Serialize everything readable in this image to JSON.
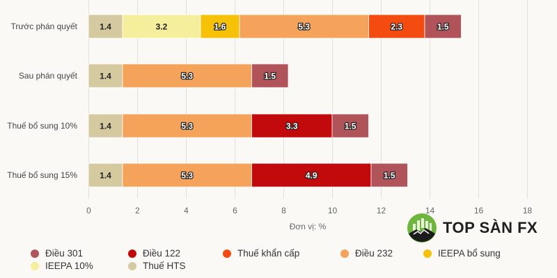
{
  "chart_data": {
    "type": "bar",
    "orientation": "horizontal",
    "stacked": true,
    "title": "",
    "xlabel": "Đơn vị: %",
    "ylabel": "",
    "xlim": [
      0,
      18
    ],
    "x_ticks": [
      0,
      2,
      4,
      6,
      8,
      10,
      12,
      14,
      16,
      18
    ],
    "grid": true,
    "legend_position": "bottom",
    "categories": [
      "Trước phán quyết",
      "Sau phán quyết",
      "Thuế bổ sung 10%",
      "Thuế bổ sung 15%"
    ],
    "stack_order": [
      "Thuế HTS",
      "IEEPA 10%",
      "IEEPA bổ sung",
      "Điều 232",
      "Điều 122",
      "Thuế khẩn cấp",
      "Điều 301"
    ],
    "series": [
      {
        "name": "Thuế HTS",
        "color": "#d5c9a0",
        "values": [
          1.4,
          1.4,
          1.4,
          1.4
        ]
      },
      {
        "name": "IEEPA 10%",
        "color": "#f5ee9c",
        "values": [
          3.2,
          null,
          null,
          null
        ]
      },
      {
        "name": "IEEPA bổ sung",
        "color": "#f6c106",
        "values": [
          1.6,
          null,
          null,
          null
        ]
      },
      {
        "name": "Điều 232",
        "color": "#f5a25b",
        "values": [
          5.3,
          5.3,
          5.3,
          5.3
        ]
      },
      {
        "name": "Điều 122",
        "color": "#c20a0c",
        "values": [
          null,
          null,
          3.3,
          4.9
        ]
      },
      {
        "name": "Thuế khẩn cấp",
        "color": "#f44b10",
        "values": [
          2.3,
          null,
          null,
          null
        ]
      },
      {
        "name": "Điều 301",
        "color": "#b0545a",
        "values": [
          1.5,
          1.5,
          1.5,
          1.5
        ]
      }
    ],
    "legend": [
      {
        "name": "Điều 301",
        "color": "#b0545a"
      },
      {
        "name": "Điều 122",
        "color": "#c20a0c"
      },
      {
        "name": "Thuế khẩn cấp",
        "color": "#f44b10"
      },
      {
        "name": "Điều 232",
        "color": "#f5a25b"
      },
      {
        "name": "IEEPA bổ sung",
        "color": "#f6c106"
      },
      {
        "name": "IEEPA 10%",
        "color": "#f5ee9c"
      },
      {
        "name": "Thuế HTS",
        "color": "#d5c9a0"
      }
    ]
  },
  "watermark": {
    "text": "TOP SÀN FX"
  }
}
